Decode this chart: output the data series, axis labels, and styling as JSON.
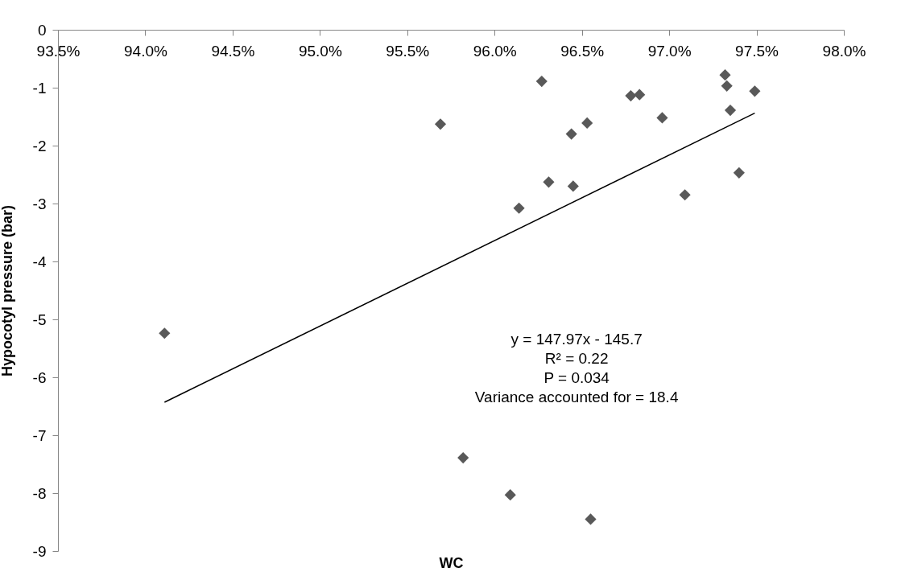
{
  "chart_data": {
    "type": "scatter",
    "xlabel": "WC",
    "ylabel": "Hypocotyl pressure (bar)",
    "xlim": [
      93.5,
      98.0
    ],
    "xticks": [
      {
        "value": 93.5,
        "label": "93.5%"
      },
      {
        "value": 94.0,
        "label": "94.0%"
      },
      {
        "value": 94.5,
        "label": "94.5%"
      },
      {
        "value": 95.0,
        "label": "95.0%"
      },
      {
        "value": 95.5,
        "label": "95.5%"
      },
      {
        "value": 96.0,
        "label": "96.0%"
      },
      {
        "value": 96.5,
        "label": "96.5%"
      },
      {
        "value": 97.0,
        "label": "97.0%"
      },
      {
        "value": 97.5,
        "label": "97.5%"
      },
      {
        "value": 98.0,
        "label": "98.0%"
      }
    ],
    "ylim": [
      -9,
      0
    ],
    "yticks": [
      -9,
      -8,
      -7,
      -6,
      -5,
      -4,
      -3,
      -2,
      -1,
      0
    ],
    "grid": false,
    "series": [
      {
        "marker": "diamond",
        "color": "#595959",
        "x": [
          94.11,
          95.69,
          95.82,
          96.09,
          96.14,
          96.27,
          96.31,
          96.44,
          96.45,
          96.53,
          96.55,
          96.78,
          96.83,
          96.96,
          97.09,
          97.32,
          97.33,
          97.35,
          97.4,
          97.49
        ],
        "values": [
          -5.24,
          -1.63,
          -7.39,
          -8.03,
          -3.08,
          -0.89,
          -2.63,
          -1.8,
          -2.7,
          -1.61,
          -8.45,
          -1.14,
          -1.12,
          -1.52,
          -2.85,
          -0.78,
          -0.97,
          -1.39,
          -2.47,
          -1.06
        ]
      },
      {
        "type": "line",
        "marker": "none",
        "color": "#000000",
        "x": [
          94.11,
          97.49
        ],
        "values": [
          -6.43,
          -1.44
        ]
      }
    ],
    "annotations": [
      "y = 147.97x - 145.7",
      "R² = 0.22",
      "P = 0.034",
      "Variance accounted for = 18.4"
    ]
  }
}
